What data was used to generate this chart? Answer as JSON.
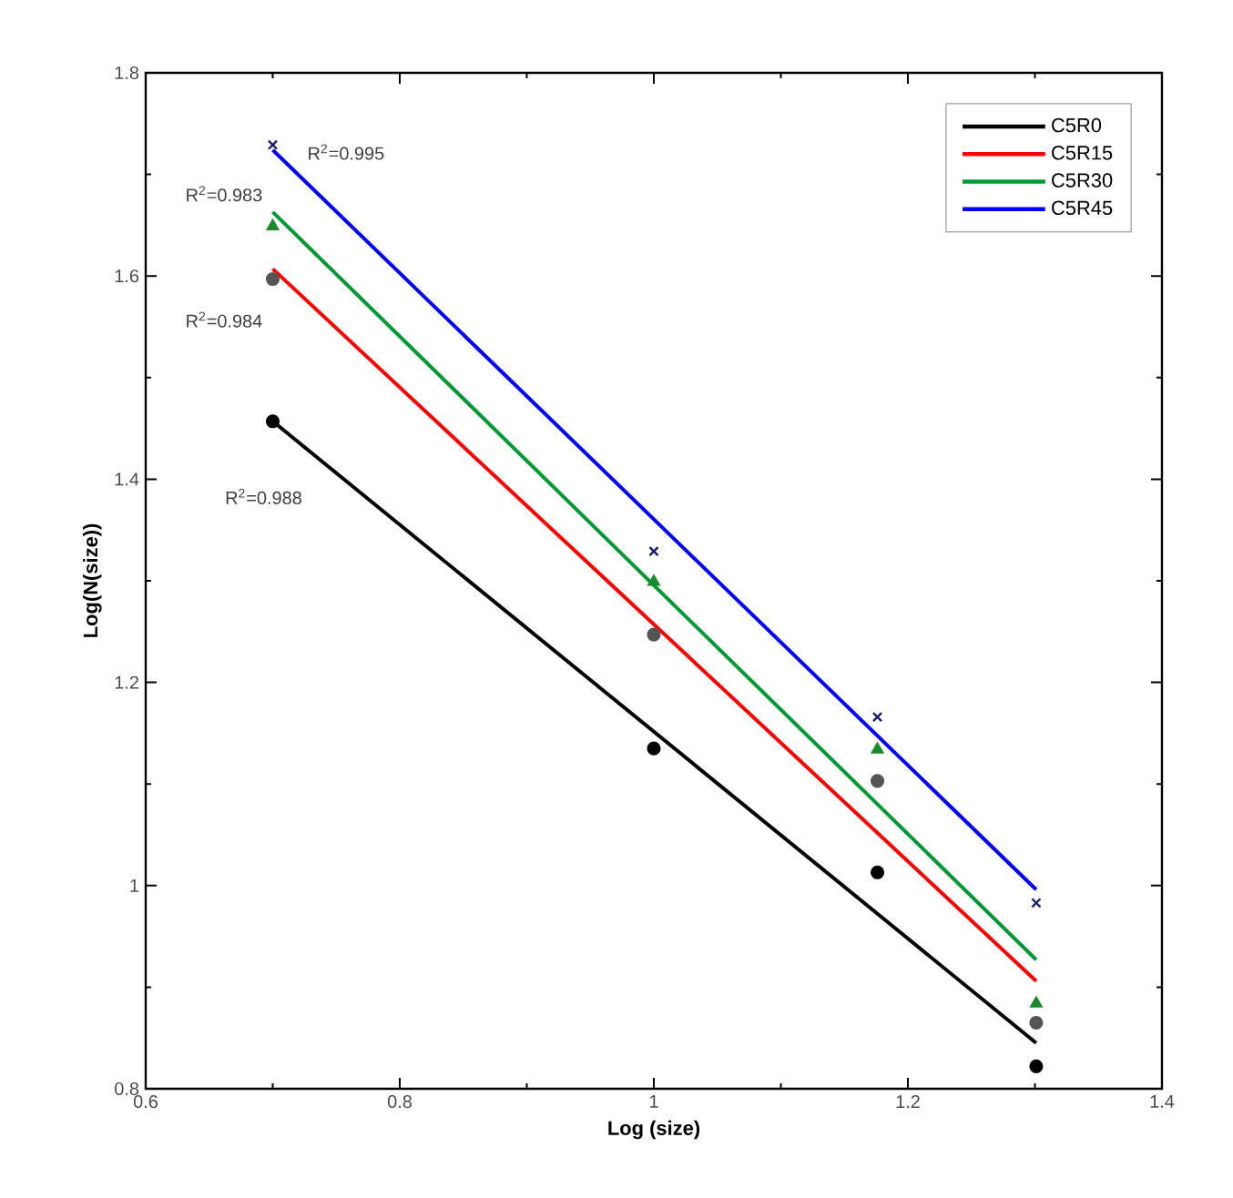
{
  "chart_data": {
    "type": "scatter",
    "xlabel": "Log (size)",
    "ylabel": "Log(N(size))",
    "xlim": [
      0.6,
      1.4
    ],
    "xticks": [
      0.6,
      0.8,
      1,
      1.2,
      1.4
    ],
    "ylim": [
      0.8,
      1.8
    ],
    "yticks": [
      0.8,
      1,
      1.2,
      1.4,
      1.6,
      1.8
    ],
    "grid": false,
    "legend": "top right",
    "series": [
      {
        "marker": "circle",
        "color": "#000000",
        "x": [
          0.7,
          1.0,
          1.176,
          1.301
        ],
        "values": [
          1.457,
          1.135,
          1.013,
          0.822
        ]
      },
      {
        "marker": "circle",
        "color": "#555555",
        "x": [
          0.7,
          1.0,
          1.176,
          1.301
        ],
        "values": [
          1.597,
          1.247,
          1.103,
          0.865
        ]
      },
      {
        "marker": "triangle",
        "color": "#1a8a2a",
        "x": [
          0.7,
          1.0,
          1.176,
          1.301
        ],
        "values": [
          1.649,
          1.299,
          1.134,
          0.884
        ]
      },
      {
        "marker": "cross",
        "color": "#1a1a6e",
        "x": [
          0.7,
          1.0,
          1.176,
          1.301
        ],
        "values": [
          1.729,
          1.329,
          1.166,
          0.983
        ]
      },
      {
        "type": "line",
        "name": "C5R0",
        "color": "#000000",
        "x": [
          0.7,
          1.301
        ],
        "values": [
          1.457,
          0.845
        ]
      },
      {
        "type": "line",
        "name": "C5R15",
        "color": "#ff0000",
        "x": [
          0.7,
          1.301
        ],
        "values": [
          1.607,
          0.906
        ]
      },
      {
        "type": "line",
        "name": "C5R30",
        "color": "#009933",
        "x": [
          0.7,
          1.301
        ],
        "values": [
          1.663,
          0.927
        ]
      },
      {
        "type": "line",
        "name": "C5R45",
        "color": "#0000ff",
        "x": [
          0.7,
          1.301
        ],
        "values": [
          1.724,
          0.996
        ]
      }
    ],
    "annotations": [
      "R$^{2}$=0.995",
      "R$^{2}$=0.983",
      "R$^{2}$=0.984",
      "R$^{2}$=0.988"
    ]
  }
}
